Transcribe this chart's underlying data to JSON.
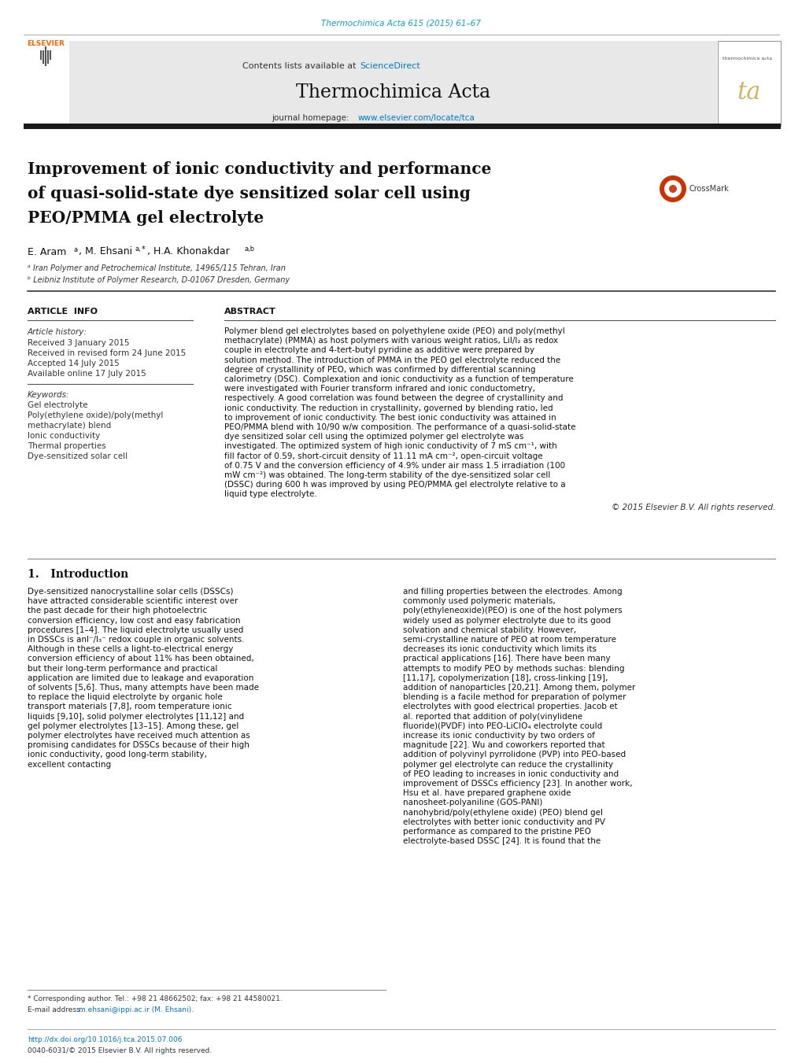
{
  "page_width": 10.2,
  "page_height": 13.51,
  "bg_color": "#ffffff",
  "top_journal_ref": "Thermochimica Acta 615 (2015) 61–67",
  "top_journal_ref_color": "#00aacc",
  "header_bg": "#e8e8e8",
  "header_sciencedirect_color": "#0077cc",
  "journal_name": "Thermochimica Acta",
  "journal_homepage_url": "www.elsevier.com/locate/tca",
  "journal_url_color": "#0077cc",
  "elsevier_color": "#ff6600",
  "title_text": "Improvement of ionic conductivity and performance\nof quasi-solid-state dye sensitized solar cell using\nPEO/PMMA gel electrolyte",
  "affil_a": "ᵃ Iran Polymer and Petrochemical Institute, 14965/115 Tehran, Iran",
  "affil_b": "ᵇ Leibniz Institute of Polymer Research, D-01067 Dresden, Germany",
  "article_info_header": "ARTICLE  INFO",
  "article_history_label": "Article history:",
  "received": "Received 3 January 2015",
  "received_revised": "Received in revised form 24 June 2015",
  "accepted": "Accepted 14 July 2015",
  "available": "Available online 17 July 2015",
  "keywords_label": "Keywords:",
  "keywords": [
    "Gel electrolyte",
    "Poly(ethylene oxide)/poly(methyl",
    "methacrylate) blend",
    "Ionic conductivity",
    "Thermal properties",
    "Dye-sensitized solar cell"
  ],
  "abstract_header": "ABSTRACT",
  "abstract_text": "Polymer blend gel electrolytes based on polyethylene oxide (PEO) and poly(methyl methacrylate) (PMMA) as host polymers with various weight ratios, LiI/I₂ as redox couple in electrolyte and 4-tert-butyl pyridine as additive were prepared by solution method. The introduction of PMMA in the PEO gel electrolyte reduced the degree of crystallinity of PEO, which was confirmed by differential scanning calorimetry (DSC). Complexation and ionic conductivity as a function of temperature were investigated with Fourier transform infrared and ionic conductometry, respectively. A good correlation was found between the degree of crystallinity and ionic conductivity. The reduction in crystallinity, governed by blending ratio, led to improvement of ionic conductivity. The best ionic conductivity was attained in PEO/PMMA blend with 10/90 w/w composition. The performance of a quasi-solid-state dye sensitized solar cell using the optimized polymer gel electrolyte was investigated. The optimized system of high ionic conductivity of 7 mS cm⁻¹, with fill factor of 0.59, short-circuit density of 11.11 mA cm⁻², open-circuit voltage of 0.75 V and the conversion efficiency of 4.9% under air mass 1.5 irradiation (100 mW cm⁻²) was obtained. The long-term stability of the dye-sensitized solar cell (DSSC) during 600 h was improved by using PEO/PMMA gel electrolyte relative to a liquid type electrolyte.",
  "copyright": "© 2015 Elsevier B.V. All rights reserved.",
  "intro_header": "1.   Introduction",
  "intro_col1": "Dye-sensitized nanocrystalline solar cells (DSSCs) have attracted considerable scientific interest over the past decade for their high photoelectric conversion efficiency, low cost and easy fabrication procedures [1–4]. The liquid electrolyte usually used in DSSCs is anI⁻/I₃⁻ redox couple in organic solvents. Although in these cells a light-to-electrical energy conversion efficiency of about 11% has been obtained, but their long-term performance and practical application are limited due to leakage and evaporation of solvents [5,6]. Thus, many attempts have been made to replace the liquid electrolyte by organic hole transport materials [7,8], room temperature ionic liquids [9,10], solid polymer electrolytes [11,12] and gel polymer electrolytes [13–15]. Among these, gel polymer electrolytes have received much attention as promising candidates for DSSCs because of their high ionic conductivity, good long-term stability, excellent contacting",
  "intro_col2": "and filling properties between the electrodes. Among commonly used polymeric materials, poly(ethyleneoxide)(PEO) is one of the host polymers widely used as polymer electrolyte due to its good solvation and chemical stability. However, semi-crystalline nature of PEO at room temperature decreases its ionic conductivity which limits its practical applications [16]. There have been many attempts to modify PEO by methods suchas: blending [11,17], copolymerization [18], cross-linking [19], addition of nanoparticles [20,21]. Among them, polymer blending is a facile method for preparation of polymer electrolytes with good electrical properties. Jacob et al. reported that addition of poly(vinylidene fluoride)(PVDF) into PEO-LiClO₄ electrolyte could increase its ionic conductivity by two orders of magnitude [22]. Wu and coworkers reported that addition of polyvinyl pyrrolidone (PVP) into PEO-based polymer gel electrolyte can reduce the crystallinity of PEO leading to increases in ionic conductivity and improvement of DSSCs efficiency [23]. In another work, Hsu et al. have prepared graphene oxide nanosheet-polyaniline (GOS-PANI) nanohybrid/poly(ethylene oxide) (PEO) blend gel electrolytes with better ionic conductivity and PV performance as compared to the pristine PEO electrolyte-based DSSC [24]. It is found that the",
  "footer_note": "* Corresponding author. Tel.: +98 21 48662502; fax: +98 21 44580021.",
  "footer_email_label": "E-mail address: ",
  "footer_email": "m.ehsani@ippi.ac.ir (M. Ehsani).",
  "footer_doi": "http://dx.doi.org/10.1016/j.tca.2015.07.006",
  "footer_issn": "0040-6031/© 2015 Elsevier B.V. All rights reserved.",
  "dark_bar_color": "#1a1a1a"
}
